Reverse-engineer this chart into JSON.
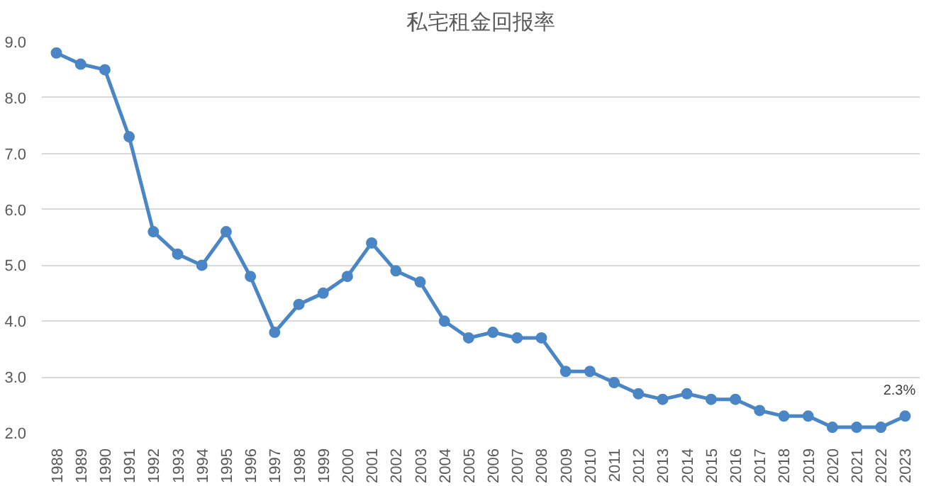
{
  "chart_data": {
    "type": "line",
    "title": "私宅租金回报率",
    "categories": [
      "1988",
      "1989",
      "1990",
      "1991",
      "1992",
      "1993",
      "1994",
      "1995",
      "1996",
      "1997",
      "1998",
      "1999",
      "2000",
      "2001",
      "2002",
      "2003",
      "2004",
      "2005",
      "2006",
      "2007",
      "2008",
      "2009",
      "2010",
      "2011",
      "2012",
      "2013",
      "2014",
      "2015",
      "2016",
      "2017",
      "2018",
      "2019",
      "2020",
      "2021",
      "2022",
      "2023"
    ],
    "series": [
      {
        "color": "#4a86c5",
        "values": [
          8.8,
          8.6,
          8.5,
          7.3,
          5.6,
          5.2,
          5.0,
          5.6,
          4.8,
          3.8,
          4.3,
          4.5,
          4.8,
          5.4,
          4.9,
          4.7,
          4.0,
          3.7,
          3.8,
          3.7,
          3.7,
          3.1,
          3.1,
          2.9,
          2.7,
          2.6,
          2.7,
          2.6,
          2.6,
          2.4,
          2.3,
          2.3,
          2.1,
          2.1,
          2.1,
          2.3
        ],
        "value_labels": [
          null,
          null,
          null,
          null,
          null,
          null,
          null,
          null,
          null,
          null,
          null,
          null,
          null,
          null,
          null,
          null,
          null,
          null,
          null,
          null,
          null,
          null,
          null,
          null,
          null,
          null,
          null,
          null,
          null,
          null,
          null,
          null,
          null,
          null,
          null,
          "2.3%"
        ]
      }
    ],
    "ylim": [
      2,
      9
    ],
    "yticks": [
      {
        "value": 2,
        "label": "2.0"
      },
      {
        "value": 3,
        "label": "3.0"
      },
      {
        "value": 4,
        "label": "4.0"
      },
      {
        "value": 5,
        "label": "5.0"
      },
      {
        "value": 6,
        "label": "6.0"
      },
      {
        "value": 7,
        "label": "7.0"
      },
      {
        "value": 8,
        "label": "8.0"
      },
      {
        "value": 9,
        "label": "9.0"
      }
    ],
    "grid": "y",
    "marker": "circle",
    "line_style": "solid"
  }
}
